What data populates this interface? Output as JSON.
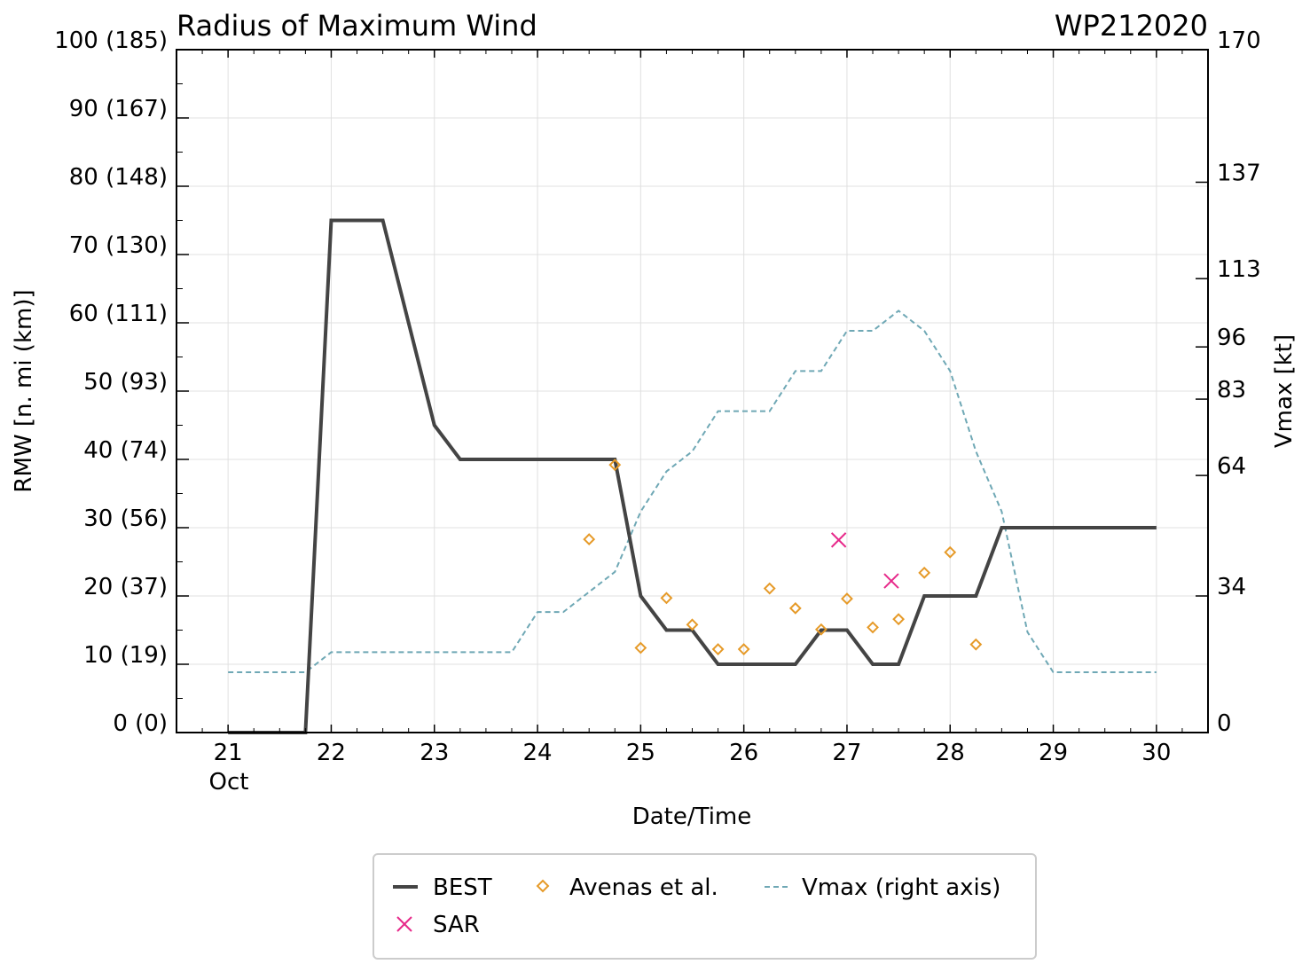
{
  "chart_data": {
    "type": "line",
    "title": "Radius of Maximum Wind",
    "storm_id": "WP212020",
    "xlabel": "Date/Time",
    "ylabel": "RMW [n. mi (km)]",
    "ylabel_right": "Vmax [kt]",
    "month_label": "Oct",
    "xlim": [
      20.5,
      30.5
    ],
    "ylim": [
      0,
      100
    ],
    "ylim_right": [
      0,
      170
    ],
    "x_ticks": [
      21,
      22,
      23,
      24,
      25,
      26,
      27,
      28,
      29,
      30
    ],
    "x_tick_labels": [
      "21",
      "22",
      "23",
      "24",
      "25",
      "26",
      "27",
      "28",
      "29",
      "30"
    ],
    "y_ticks": [
      0,
      10,
      20,
      30,
      40,
      50,
      60,
      70,
      80,
      90,
      100
    ],
    "y_tick_labels": [
      "0 (0)",
      "10 (19)",
      "20 (37)",
      "30 (56)",
      "40 (74)",
      "50 (93)",
      "60 (111)",
      "70 (130)",
      "80 (148)",
      "90 (167)",
      "100 (185)"
    ],
    "y_right_ticks": [
      0,
      34,
      64,
      83,
      96,
      113,
      137,
      170
    ],
    "y_right_tick_labels": [
      "0",
      "34",
      "64",
      "83",
      "96",
      "113",
      "137",
      "170"
    ],
    "grid": true,
    "legend_position": "bottom-center",
    "series": [
      {
        "name": "BEST",
        "kind": "line",
        "axis": "left",
        "color": "#444444",
        "x": [
          21.0,
          21.75,
          22.0,
          22.5,
          23.0,
          23.25,
          24.75,
          25.0,
          25.25,
          25.5,
          25.75,
          26.5,
          26.75,
          27.0,
          27.25,
          27.5,
          27.75,
          28.25,
          28.5,
          30.0
        ],
        "y": [
          0,
          0,
          75,
          75,
          45,
          40,
          40,
          20,
          15,
          15,
          10,
          10,
          15,
          15,
          10,
          10,
          20,
          20,
          30,
          30
        ]
      },
      {
        "name": "SAR",
        "kind": "marker-x",
        "axis": "left",
        "color": "#e7298a",
        "x": [
          26.92,
          27.43
        ],
        "y": [
          28.2,
          22.2
        ]
      },
      {
        "name": "Avenas et al.",
        "kind": "marker-diamond",
        "axis": "left",
        "color": "#e69a28",
        "x": [
          24.5,
          24.75,
          25.0,
          25.25,
          25.5,
          25.75,
          26.0,
          26.25,
          26.5,
          26.75,
          27.0,
          27.25,
          27.5,
          27.75,
          28.0,
          28.25
        ],
        "y": [
          28.3,
          39.2,
          12.4,
          19.7,
          15.8,
          12.2,
          12.2,
          21.1,
          18.2,
          15.1,
          19.6,
          15.4,
          16.6,
          23.4,
          26.4,
          12.9
        ]
      },
      {
        "name": "Vmax (right axis)",
        "kind": "dashed-line",
        "axis": "right",
        "color": "#6fa8b5",
        "x": [
          21.0,
          21.75,
          22.0,
          23.75,
          24.0,
          24.25,
          24.75,
          25.0,
          25.25,
          25.5,
          25.75,
          26.25,
          26.5,
          26.75,
          27.0,
          27.25,
          27.5,
          27.75,
          28.0,
          28.25,
          28.5,
          28.75,
          29.0,
          30.0
        ],
        "y": [
          15,
          15,
          20,
          20,
          30,
          30,
          40,
          55,
          65,
          70,
          80,
          80,
          90,
          90,
          100,
          100,
          105,
          100,
          90,
          70,
          55,
          25,
          15,
          15
        ]
      }
    ]
  }
}
